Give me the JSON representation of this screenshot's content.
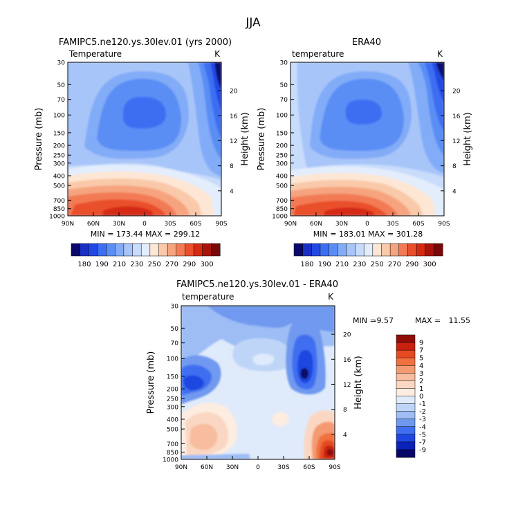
{
  "title": "JJA",
  "chart_data": [
    {
      "type": "heatmap",
      "title": "FAMIPC5.ne120.ys.30lev.01 (yrs 2000)",
      "variable_label": "Temperature",
      "units": "K",
      "ylabel": "Pressure (mb)",
      "ylabel_right": "Height (km)",
      "x_ticks": [
        "90N",
        "60N",
        "30N",
        "0",
        "30S",
        "60S",
        "90S"
      ],
      "y_ticks": [
        "30",
        "50",
        "70",
        "100",
        "150",
        "200",
        "250",
        "300",
        "400",
        "500",
        "700",
        "850",
        "1000"
      ],
      "height_ticks": [
        "20",
        "16",
        "12",
        "8",
        "4"
      ],
      "min_max": "MIN = 173.44   MAX = 299.12",
      "min": 173.44,
      "max": 299.12
    },
    {
      "type": "heatmap",
      "title": "ERA40",
      "variable_label": "temperature",
      "units": "K",
      "ylabel": "Pressure (mb)",
      "ylabel_right": "Height (km)",
      "x_ticks": [
        "90N",
        "60N",
        "30N",
        "0",
        "30S",
        "60S",
        "90S"
      ],
      "y_ticks": [
        "30",
        "50",
        "70",
        "100",
        "150",
        "200",
        "250",
        "300",
        "400",
        "500",
        "700",
        "850",
        "1000"
      ],
      "height_ticks": [
        "20",
        "16",
        "12",
        "8",
        "4"
      ],
      "min_max": "MIN = 183.01   MAX = 301.28",
      "min": 183.01,
      "max": 301.28
    },
    {
      "type": "heatmap",
      "title": "FAMIPC5.ne120.ys.30lev.01 - ERA40",
      "variable_label": "temperature",
      "units": "K",
      "ylabel": "Pressure (mb)",
      "ylabel_right": "Height (km)",
      "x_ticks": [
        "90N",
        "60N",
        "30N",
        "0",
        "30S",
        "60S",
        "90S"
      ],
      "y_ticks": [
        "30",
        "50",
        "70",
        "100",
        "150",
        "200",
        "250",
        "300",
        "400",
        "500",
        "700",
        "850",
        "1000"
      ],
      "height_ticks": [
        "20",
        "16",
        "12",
        "8",
        "4"
      ],
      "min_label": "MIN =",
      "min": -9.57,
      "max_label": "MAX =",
      "max": 11.55
    }
  ],
  "abs_colorbar": {
    "labels": [
      "180",
      "190",
      "210",
      "230",
      "250",
      "270",
      "290",
      "300"
    ],
    "colors": [
      "#08086e",
      "#1a2fc4",
      "#2248e3",
      "#3c6ef2",
      "#5a8ef5",
      "#82acf7",
      "#a8c5f9",
      "#c8dcfb",
      "#e3edfc",
      "#fde6d4",
      "#f9c9a9",
      "#f6a47f",
      "#f27a55",
      "#e94f2b",
      "#d42a12",
      "#a8140a",
      "#7a0808"
    ]
  },
  "diff_colorbar": {
    "labels": [
      "9",
      "7",
      "5",
      "4",
      "3",
      "2",
      "1",
      "0",
      "-1",
      "-2",
      "-3",
      "-4",
      "-5",
      "-7",
      "-9"
    ],
    "colors": [
      "#8f0f08",
      "#c92210",
      "#e54a22",
      "#f0713f",
      "#f49a72",
      "#f7bd9e",
      "#fad7c2",
      "#fdece0",
      "#dfeafb",
      "#bfd5f7",
      "#9dbdf4",
      "#6f99ef",
      "#3f6ef0",
      "#1e47e0",
      "#0b22b8",
      "#070768"
    ]
  }
}
